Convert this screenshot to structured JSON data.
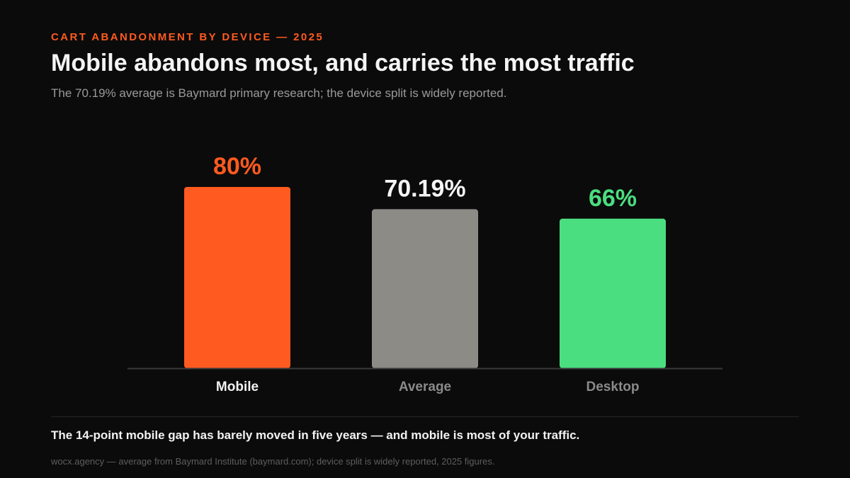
{
  "header": {
    "eyebrow": "CART ABANDONMENT BY DEVICE — 2025",
    "title": "Mobile abandons most, and carries the most traffic",
    "subtitle": "The 70.19% average is Baymard primary research; the device split is widely reported."
  },
  "chart_data": {
    "type": "bar",
    "categories": [
      "Mobile",
      "Average",
      "Desktop"
    ],
    "values": [
      80,
      70.19,
      66
    ],
    "value_labels": [
      "80%",
      "70.19%",
      "66%"
    ],
    "colors": [
      "#ff5a1f",
      "#8c8b86",
      "#4ade80"
    ],
    "value_label_colors": [
      "#ff5a1f",
      "#f4f4f4",
      "#4ade80"
    ],
    "category_label_colors": [
      "#f2f2f2",
      "#8a8a8a",
      "#8a8a8a"
    ],
    "ylim": [
      0,
      100
    ],
    "grid": false
  },
  "footer": {
    "takeaway": "The 14-point mobile gap has barely moved in five years — and mobile is most of your traffic.",
    "source": "wocx.agency — average from Baymard Institute (baymard.com); device split is widely reported, 2025 figures."
  }
}
